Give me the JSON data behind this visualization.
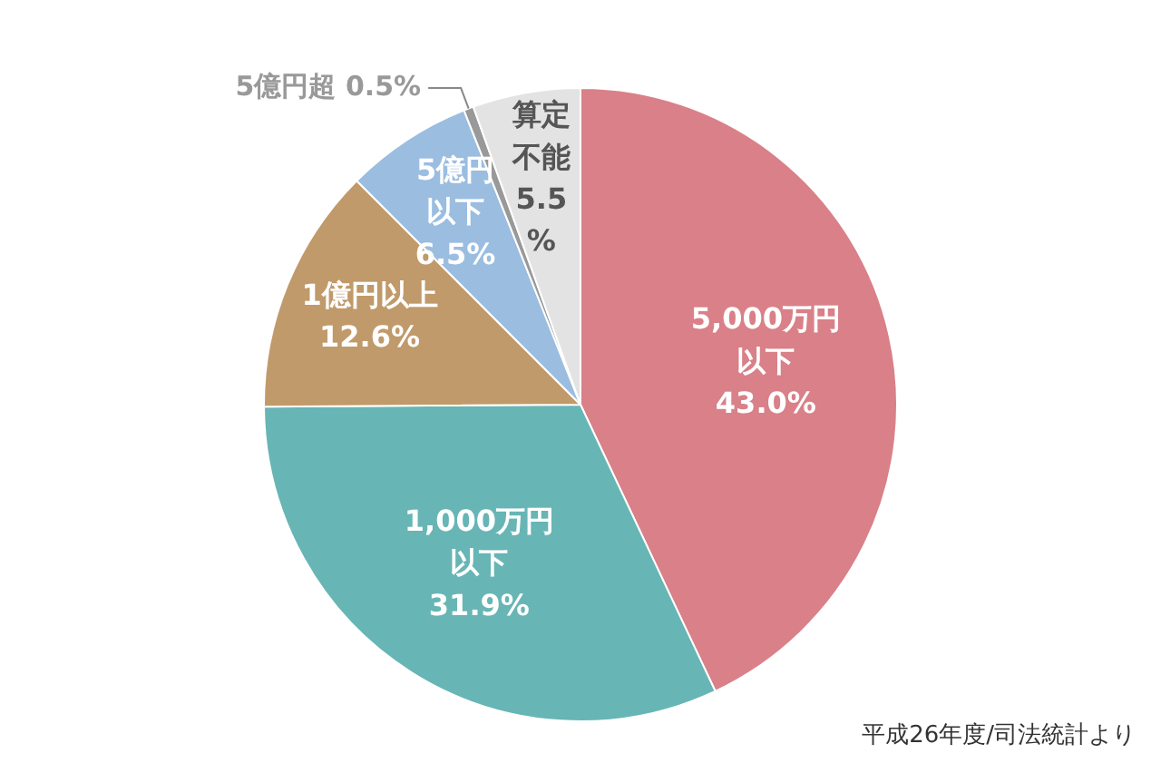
{
  "chart_data": {
    "type": "pie",
    "categories": [
      "5,000万円以下",
      "1,000万円以下",
      "1億円以上",
      "5億円以下",
      "5億円超",
      "算定不能"
    ],
    "values": [
      43.0,
      31.9,
      12.6,
      6.5,
      0.5,
      5.5
    ],
    "colors": [
      "#d98088",
      "#68b5b5",
      "#c09a6a",
      "#9bbde0",
      "#999999",
      "#e3e3e3"
    ],
    "value_labels": [
      "43.0%",
      "31.9%",
      "12.6%",
      "6.5%",
      "0.5%",
      "5.5%"
    ],
    "legend": false,
    "annotations": [
      "平成26年度/司法統計より"
    ]
  }
}
